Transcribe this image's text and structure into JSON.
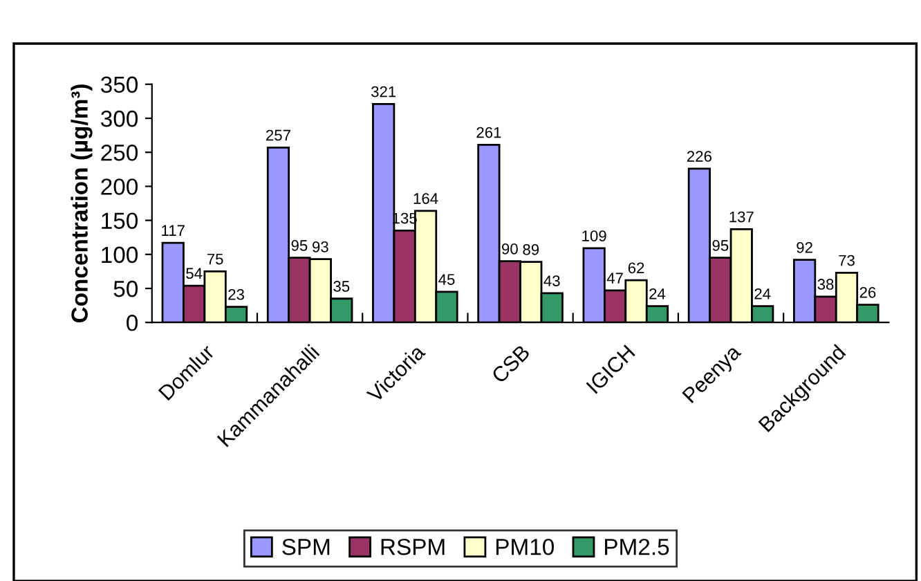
{
  "chart_data": {
    "type": "bar",
    "ylabel": "Concentration (µg/m³)",
    "categories": [
      "Domlur",
      "Kammanahalli",
      "Victoria",
      "CSB",
      "IGICH",
      "Peenya",
      "Background"
    ],
    "series": [
      {
        "name": "SPM",
        "color": "#9999ff",
        "values": [
          117,
          257,
          321,
          261,
          109,
          226,
          92
        ]
      },
      {
        "name": "RSPM",
        "color": "#993366",
        "values": [
          54,
          95,
          135,
          90,
          47,
          95,
          38
        ]
      },
      {
        "name": "PM10",
        "color": "#ffffcc",
        "values": [
          75,
          93,
          164,
          89,
          62,
          137,
          73
        ]
      },
      {
        "name": "PM2.5",
        "color": "#339966",
        "values": [
          23,
          35,
          45,
          43,
          24,
          24,
          26
        ]
      }
    ],
    "ylim": [
      0,
      350
    ],
    "yticks": [
      0,
      50,
      100,
      150,
      200,
      250,
      300,
      350
    ],
    "data_labels": true,
    "grid": false,
    "legend": "bottom"
  }
}
